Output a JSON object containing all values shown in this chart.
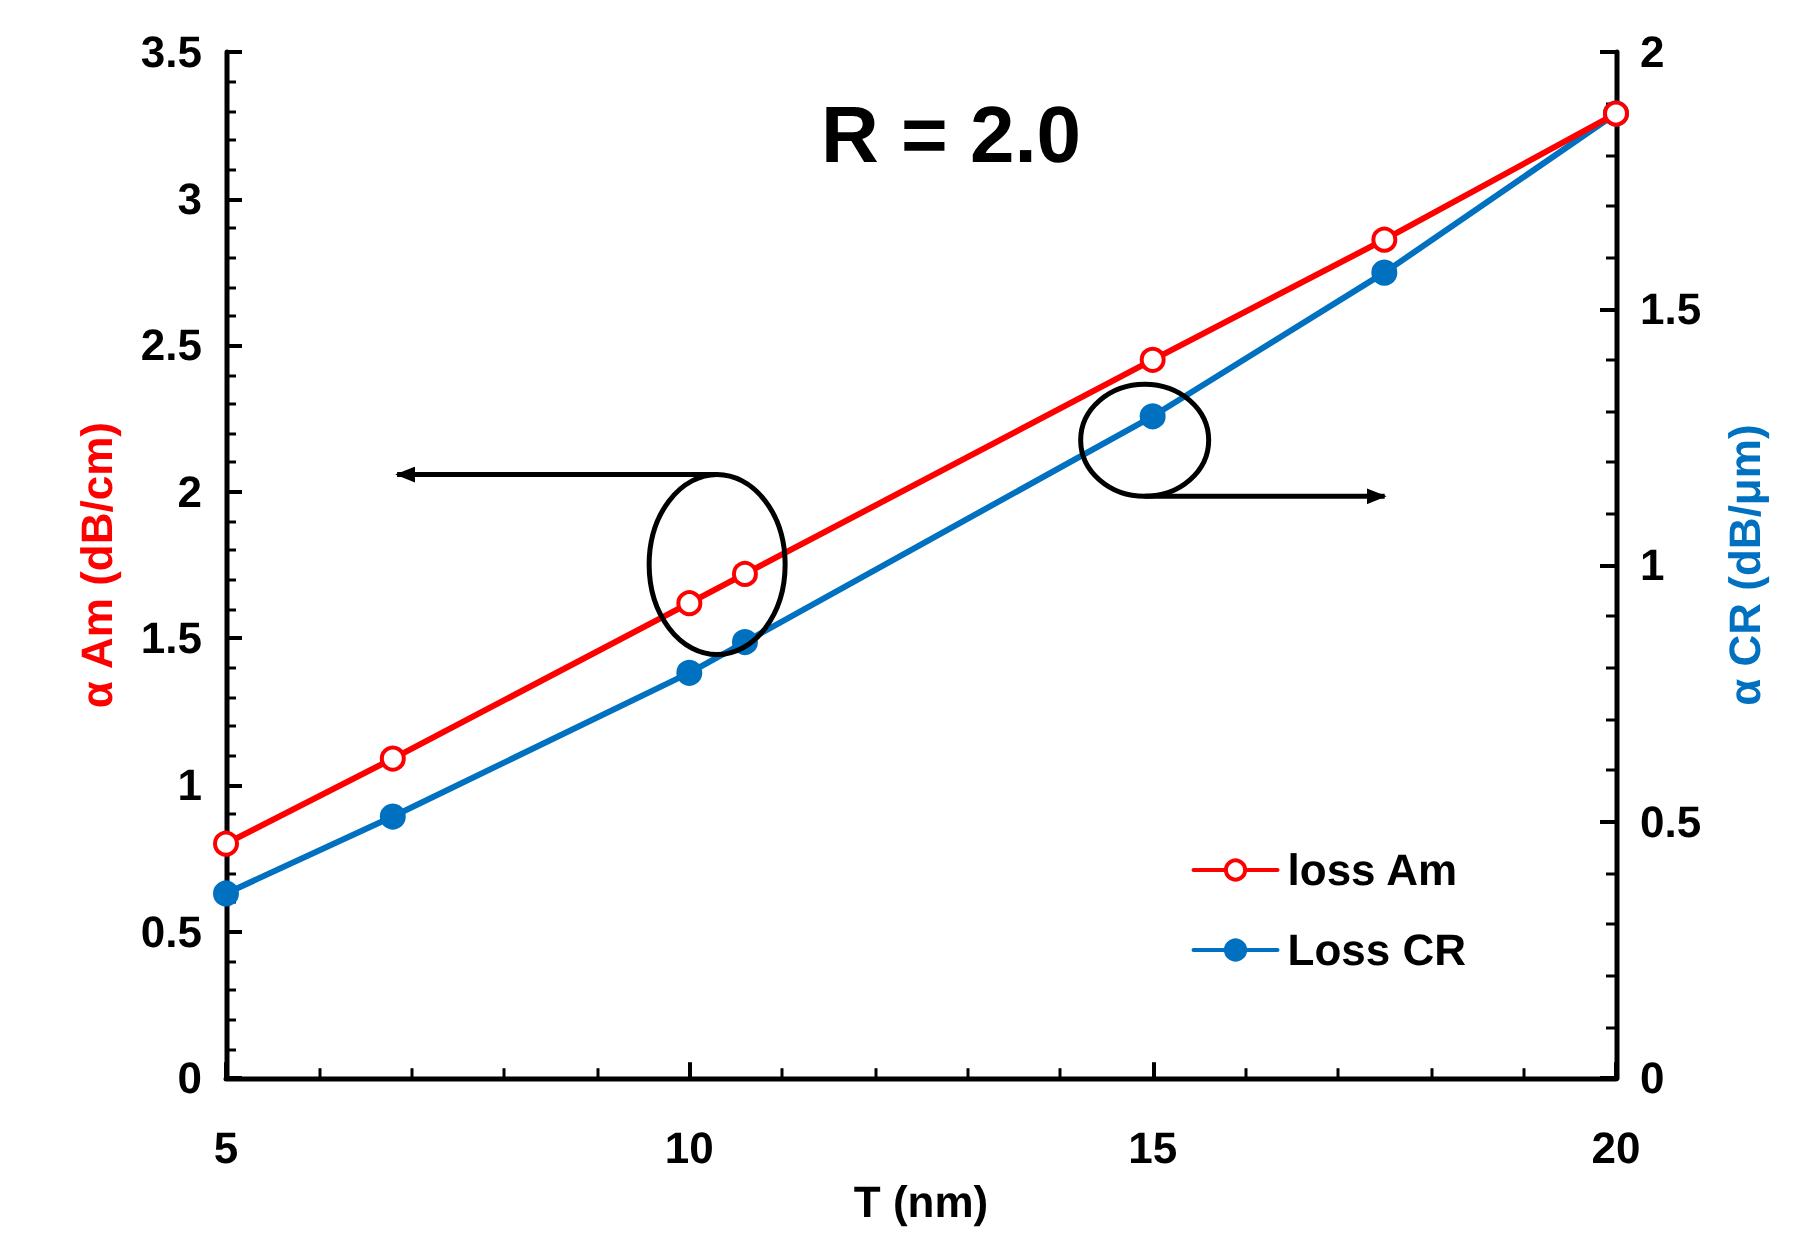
{
  "chart_data": {
    "type": "line",
    "title": "R = 2.0",
    "xlabel": "T (nm)",
    "ylabel": "α Am (dB/cm)",
    "y2label": "α CR (dB/μm)",
    "x": [
      5,
      6.8,
      10,
      10.6,
      15,
      17.5,
      20
    ],
    "series": [
      {
        "name": "loss Am",
        "color": "#ff0000",
        "values": [
          0.8,
          1.09,
          1.62,
          1.72,
          2.45,
          2.86,
          3.29
        ]
      },
      {
        "name": "Loss CR",
        "color": "#0070c0",
        "axis": "y2",
        "values": [
          0.36,
          0.51,
          0.79,
          0.85,
          1.29,
          1.57,
          1.88
        ]
      }
    ],
    "xlim": [
      5,
      20
    ],
    "xticks": [
      5,
      10,
      15,
      20
    ],
    "ylim": [
      0,
      3.5
    ],
    "yticks": [
      0,
      0.5,
      1,
      1.5,
      2,
      2.5,
      3,
      3.5
    ],
    "y2lim": [
      0,
      2
    ],
    "y2ticks": [
      0,
      0.5,
      1,
      1.5,
      2
    ],
    "grid": false,
    "legend": "bottom right",
    "marker": "circle",
    "line_style": "solid"
  }
}
